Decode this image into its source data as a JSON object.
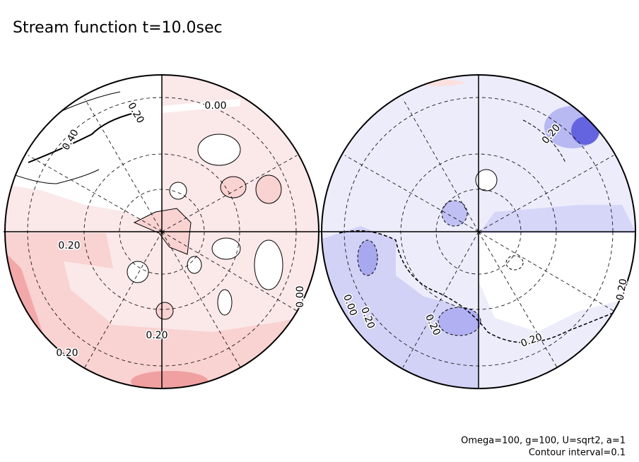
{
  "figure": {
    "title": "Stream function t=10.0sec",
    "notes": [
      "Omega=100, g=100, U=sqrt2, a=1",
      "Contour interval=0.1"
    ],
    "left_panel": {
      "contour_labels": [
        "0.20",
        "0.40",
        "0.00",
        "0.20",
        "0.20",
        "0.20",
        "0.00"
      ]
    },
    "right_panel": {
      "contour_labels": [
        "0.20",
        "0.00",
        "0.20",
        "0.20",
        "0.20",
        "0.20"
      ]
    }
  }
}
